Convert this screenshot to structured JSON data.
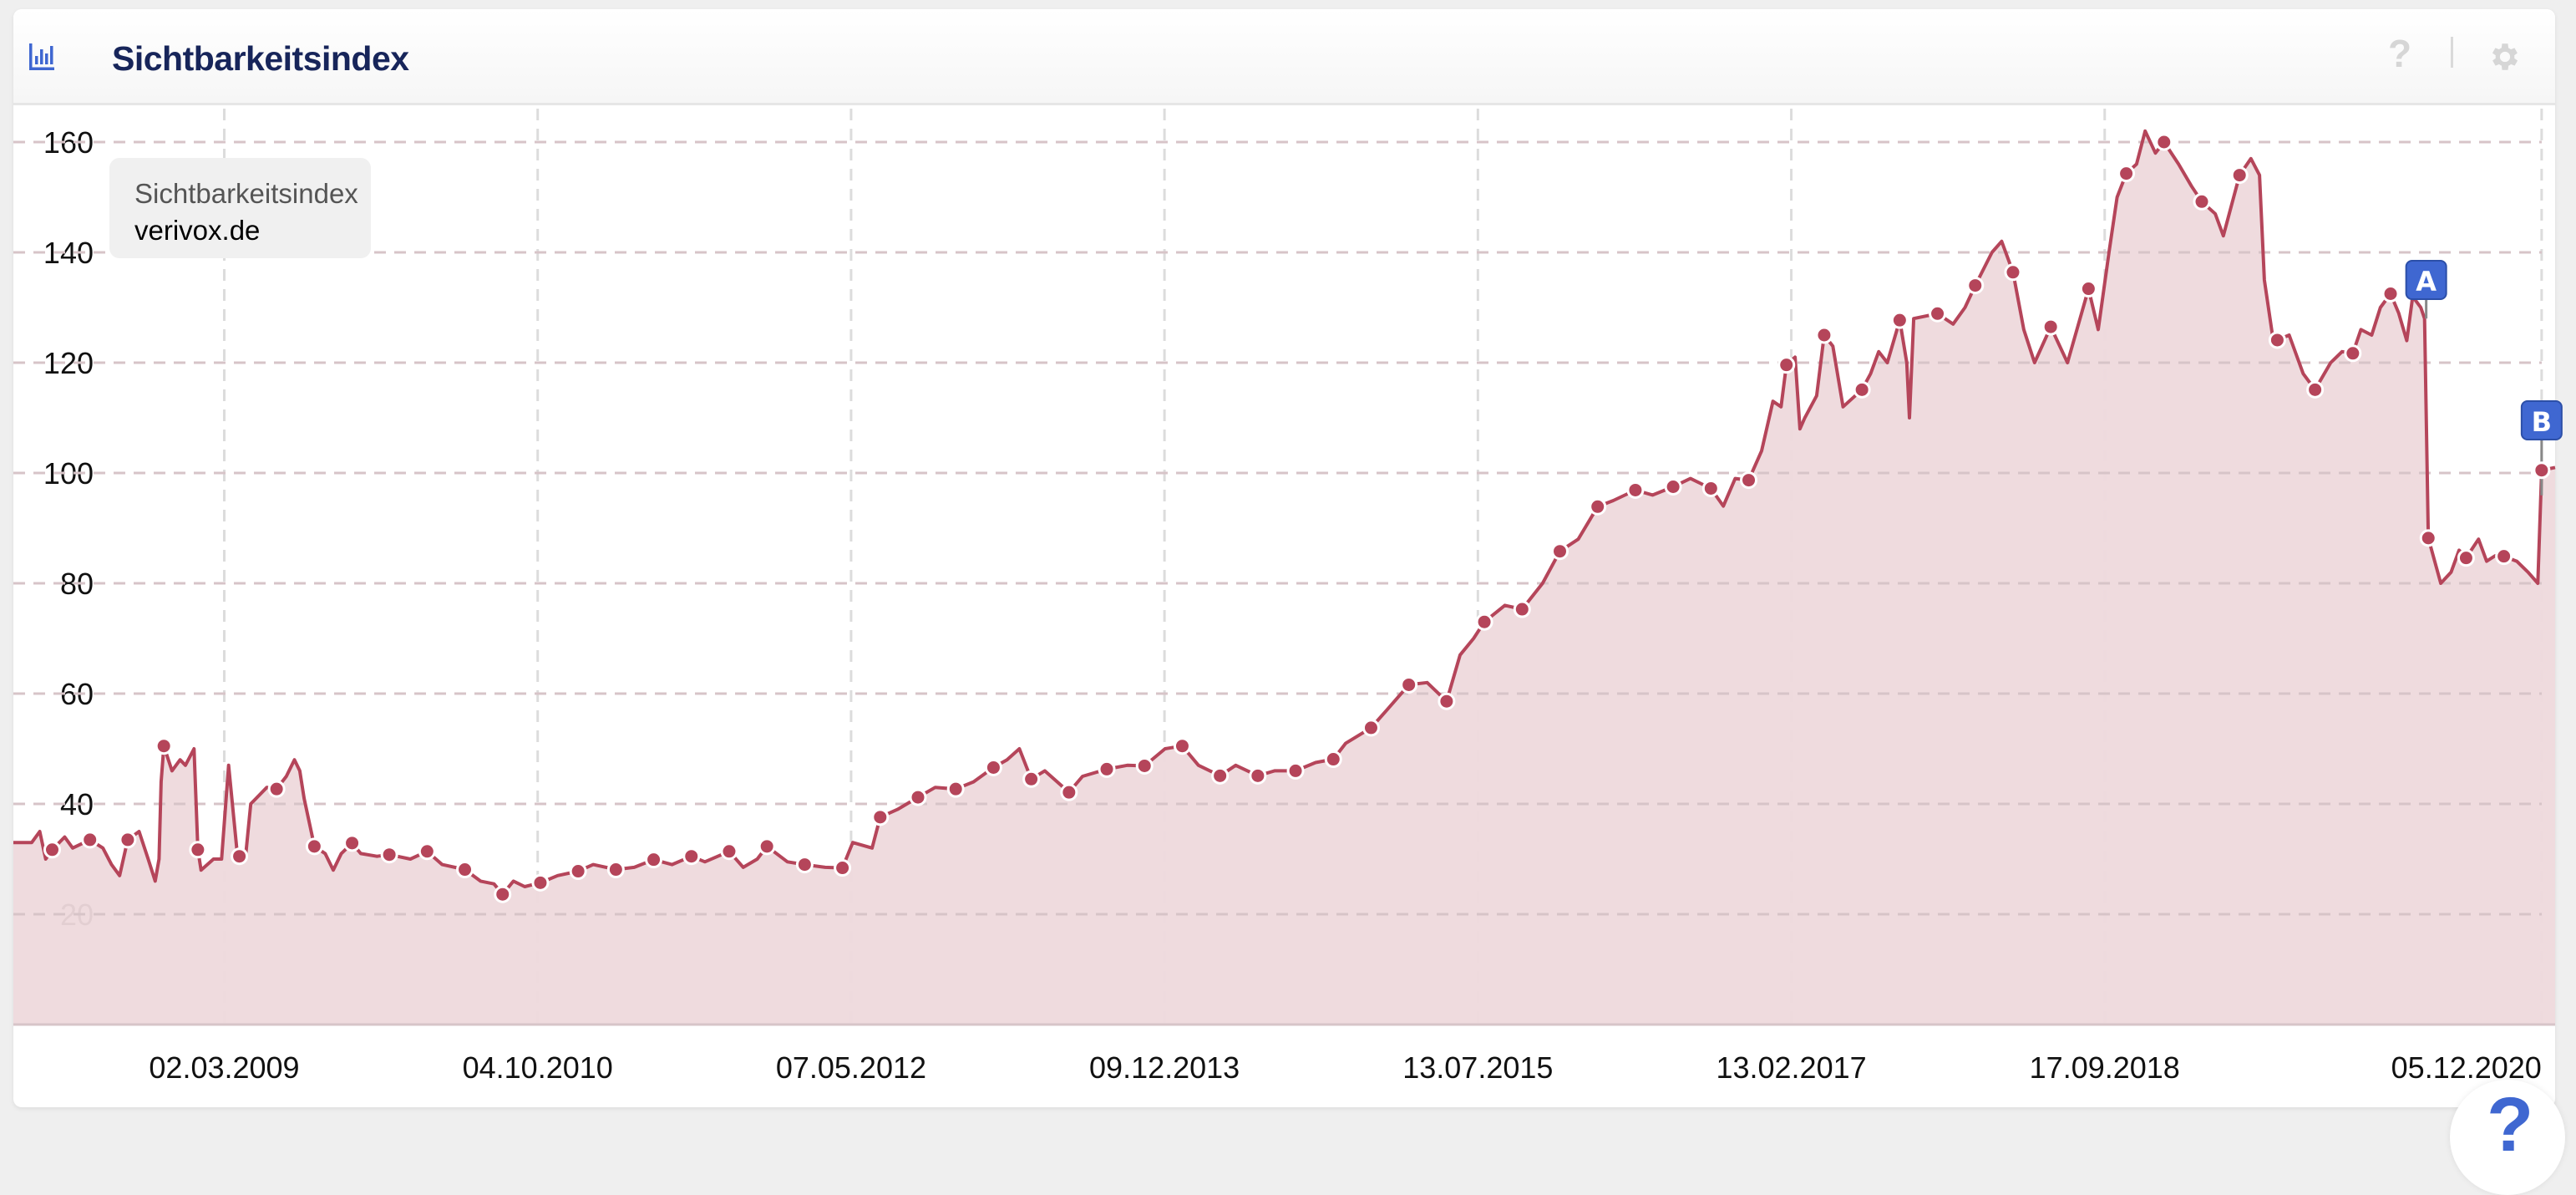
{
  "header": {
    "title": "Sichtbarkeitsindex",
    "icon": "bar-chart-icon",
    "help_icon": "?",
    "settings_icon": "gear-icon"
  },
  "legend": {
    "title": "Sichtbarkeitsindex",
    "domain": "verivox.de"
  },
  "help_button": "?",
  "colors": {
    "line": "#b5455a",
    "fill": "#eed9dc",
    "flag": "#3f67d1",
    "accent": "#17255a"
  },
  "chart_data": {
    "type": "area",
    "title": "",
    "xlabel": "",
    "ylabel": "",
    "x_range": [
      "2008-02-05",
      "2020-12-30"
    ],
    "ylim": [
      0,
      165
    ],
    "y_ticks": [
      20,
      40,
      60,
      80,
      100,
      120,
      140,
      160
    ],
    "x_ticks": [
      "02.03.2009",
      "04.10.2010",
      "07.05.2012",
      "09.12.2013",
      "13.07.2015",
      "13.02.2017",
      "17.09.2018",
      "05.12.2020"
    ],
    "grid": true,
    "legend_position": "top-left",
    "series": [
      {
        "name": "verivox.de",
        "points": [
          [
            "2008-02-05",
            33
          ],
          [
            "2008-03-10",
            33
          ],
          [
            "2008-03-25",
            35
          ],
          [
            "2008-04-05",
            30
          ],
          [
            "2008-04-17",
            31.7
          ],
          [
            "2008-05-10",
            34
          ],
          [
            "2008-05-25",
            32
          ],
          [
            "2008-06-26",
            33.5
          ],
          [
            "2008-07-20",
            32
          ],
          [
            "2008-08-05",
            29
          ],
          [
            "2008-08-20",
            27
          ],
          [
            "2008-09-04",
            33.5
          ],
          [
            "2008-09-25",
            35
          ],
          [
            "2008-10-12",
            30
          ],
          [
            "2008-10-25",
            26
          ],
          [
            "2008-11-01",
            30
          ],
          [
            "2008-11-05",
            44
          ],
          [
            "2008-11-10",
            50.5
          ],
          [
            "2008-11-25",
            46
          ],
          [
            "2008-12-10",
            48
          ],
          [
            "2008-12-20",
            47
          ],
          [
            "2009-01-05",
            50
          ],
          [
            "2009-01-12",
            31.7
          ],
          [
            "2009-01-18",
            28
          ],
          [
            "2009-02-10",
            30
          ],
          [
            "2009-02-25",
            30
          ],
          [
            "2009-03-10",
            47
          ],
          [
            "2009-03-25",
            32
          ],
          [
            "2009-03-30",
            30.5
          ],
          [
            "2009-04-10",
            30
          ],
          [
            "2009-04-20",
            40
          ],
          [
            "2009-05-20",
            43
          ],
          [
            "2009-06-07",
            42.7
          ],
          [
            "2009-06-25",
            45
          ],
          [
            "2009-07-10",
            48
          ],
          [
            "2009-07-20",
            46
          ],
          [
            "2009-07-28",
            41
          ],
          [
            "2009-08-16",
            32.3
          ],
          [
            "2009-09-05",
            31
          ],
          [
            "2009-09-20",
            28
          ],
          [
            "2009-10-05",
            31
          ],
          [
            "2009-10-25",
            32.9
          ],
          [
            "2009-11-10",
            31
          ],
          [
            "2009-12-10",
            30.5
          ],
          [
            "2010-01-02",
            30.8
          ],
          [
            "2010-02-10",
            30
          ],
          [
            "2010-03-13",
            31.4
          ],
          [
            "2010-04-10",
            29
          ],
          [
            "2010-05-22",
            28.1
          ],
          [
            "2010-06-20",
            26
          ],
          [
            "2010-07-15",
            25.5
          ],
          [
            "2010-07-31",
            23.6
          ],
          [
            "2010-08-20",
            26
          ],
          [
            "2010-09-10",
            25
          ],
          [
            "2010-10-09",
            25.7
          ],
          [
            "2010-11-10",
            27
          ],
          [
            "2010-12-18",
            27.8
          ],
          [
            "2011-01-15",
            29
          ],
          [
            "2011-02-26",
            28.1
          ],
          [
            "2011-04-01",
            28.5
          ],
          [
            "2011-05-07",
            29.9
          ],
          [
            "2011-06-10",
            29
          ],
          [
            "2011-07-16",
            30.5
          ],
          [
            "2011-08-10",
            29.5
          ],
          [
            "2011-09-24",
            31.4
          ],
          [
            "2011-10-20",
            28.5
          ],
          [
            "2011-11-15",
            30
          ],
          [
            "2011-12-03",
            32.3
          ],
          [
            "2012-01-10",
            29.5
          ],
          [
            "2012-02-11",
            29.0
          ],
          [
            "2012-03-20",
            28.5
          ],
          [
            "2012-04-21",
            28.4
          ],
          [
            "2012-05-10",
            33
          ],
          [
            "2012-06-15",
            32
          ],
          [
            "2012-06-30",
            37.6
          ],
          [
            "2012-08-01",
            39
          ],
          [
            "2012-09-08",
            41.2
          ],
          [
            "2012-10-10",
            43
          ],
          [
            "2012-11-17",
            42.7
          ],
          [
            "2012-12-20",
            44
          ],
          [
            "2013-01-26",
            46.6
          ],
          [
            "2013-02-20",
            48
          ],
          [
            "2013-03-15",
            50
          ],
          [
            "2013-04-06",
            44.5
          ],
          [
            "2013-05-01",
            46
          ],
          [
            "2013-06-15",
            42.1
          ],
          [
            "2013-07-10",
            45
          ],
          [
            "2013-08-24",
            46.3
          ],
          [
            "2013-10-01",
            47
          ],
          [
            "2013-11-02",
            46.9
          ],
          [
            "2013-12-10",
            50
          ],
          [
            "2014-01-11",
            50.5
          ],
          [
            "2014-02-10",
            47
          ],
          [
            "2014-03-22",
            45.1
          ],
          [
            "2014-04-20",
            47
          ],
          [
            "2014-05-31",
            45.1
          ],
          [
            "2014-07-01",
            46
          ],
          [
            "2014-08-09",
            46.0
          ],
          [
            "2014-09-15",
            47.5
          ],
          [
            "2014-10-18",
            48.1
          ],
          [
            "2014-11-10",
            51
          ],
          [
            "2014-12-27",
            53.8
          ],
          [
            "2015-01-25",
            57
          ],
          [
            "2015-03-07",
            61.6
          ],
          [
            "2015-04-10",
            62
          ],
          [
            "2015-05-16",
            58.6
          ],
          [
            "2015-06-10",
            67
          ],
          [
            "2015-07-05",
            70
          ],
          [
            "2015-07-25",
            73.0
          ],
          [
            "2015-09-01",
            76
          ],
          [
            "2015-10-03",
            75.3
          ],
          [
            "2015-11-10",
            80
          ],
          [
            "2015-12-12",
            85.8
          ],
          [
            "2016-01-15",
            88
          ],
          [
            "2016-02-20",
            93.9
          ],
          [
            "2016-03-20",
            95
          ],
          [
            "2016-04-30",
            96.9
          ],
          [
            "2016-06-01",
            96
          ],
          [
            "2016-07-09",
            97.5
          ],
          [
            "2016-08-10",
            99
          ],
          [
            "2016-09-17",
            97.2
          ],
          [
            "2016-10-10",
            94
          ],
          [
            "2016-11-01",
            99
          ],
          [
            "2016-11-26",
            98.7
          ],
          [
            "2016-12-20",
            104
          ],
          [
            "2017-01-10",
            113
          ],
          [
            "2017-01-25",
            112
          ],
          [
            "2017-02-04",
            119.6
          ],
          [
            "2017-02-20",
            121
          ],
          [
            "2017-03-01",
            108
          ],
          [
            "2017-03-10",
            110
          ],
          [
            "2017-04-01",
            114
          ],
          [
            "2017-04-15",
            125.0
          ],
          [
            "2017-05-01",
            123
          ],
          [
            "2017-05-20",
            112
          ],
          [
            "2017-06-24",
            115.1
          ],
          [
            "2017-07-10",
            118
          ],
          [
            "2017-07-25",
            122
          ],
          [
            "2017-08-10",
            120
          ],
          [
            "2017-09-02",
            127.7
          ],
          [
            "2017-09-15",
            120
          ],
          [
            "2017-09-20",
            110
          ],
          [
            "2017-09-28",
            128
          ],
          [
            "2017-11-11",
            128.9
          ],
          [
            "2017-12-10",
            127
          ],
          [
            "2018-01-01",
            130
          ],
          [
            "2018-01-20",
            134.0
          ],
          [
            "2018-02-20",
            140
          ],
          [
            "2018-03-10",
            142
          ],
          [
            "2018-03-31",
            136.4
          ],
          [
            "2018-04-20",
            126
          ],
          [
            "2018-05-10",
            120
          ],
          [
            "2018-06-09",
            126.5
          ],
          [
            "2018-07-10",
            120
          ],
          [
            "2018-08-18",
            133.4
          ],
          [
            "2018-09-05",
            126
          ],
          [
            "2018-09-25",
            140
          ],
          [
            "2018-10-10",
            150
          ],
          [
            "2018-10-27",
            154.3
          ],
          [
            "2018-11-15",
            156
          ],
          [
            "2018-12-01",
            162
          ],
          [
            "2018-12-20",
            158
          ],
          [
            "2019-01-05",
            160.0
          ],
          [
            "2019-02-01",
            156
          ],
          [
            "2019-02-25",
            152
          ],
          [
            "2019-03-16",
            149.2
          ],
          [
            "2019-04-10",
            147
          ],
          [
            "2019-04-25",
            143
          ],
          [
            "2019-05-25",
            154.0
          ],
          [
            "2019-06-15",
            157
          ],
          [
            "2019-07-01",
            154
          ],
          [
            "2019-07-10",
            135
          ],
          [
            "2019-07-25",
            125
          ],
          [
            "2019-08-03",
            124.1
          ],
          [
            "2019-08-25",
            125
          ],
          [
            "2019-09-20",
            118
          ],
          [
            "2019-10-12",
            115.1
          ],
          [
            "2019-11-10",
            120
          ],
          [
            "2019-12-01",
            122
          ],
          [
            "2019-12-21",
            121.7
          ],
          [
            "2020-01-05",
            126
          ],
          [
            "2020-01-25",
            125
          ],
          [
            "2020-02-10",
            130
          ],
          [
            "2020-02-29",
            132.5
          ],
          [
            "2020-03-15",
            129
          ],
          [
            "2020-03-30",
            124
          ],
          [
            "2020-04-10",
            132
          ],
          [
            "2020-04-25",
            130
          ],
          [
            "2020-05-02",
            128
          ],
          [
            "2020-05-09",
            88.2
          ],
          [
            "2020-06-01",
            80
          ],
          [
            "2020-06-20",
            82
          ],
          [
            "2020-07-05",
            86
          ],
          [
            "2020-07-18",
            84.6
          ],
          [
            "2020-08-10",
            88
          ],
          [
            "2020-08-25",
            84
          ],
          [
            "2020-09-10",
            85
          ],
          [
            "2020-09-26",
            84.9
          ],
          [
            "2020-10-20",
            84
          ],
          [
            "2020-11-10",
            82
          ],
          [
            "2020-11-28",
            80
          ],
          [
            "2020-12-05",
            100.5
          ],
          [
            "2020-12-30",
            101
          ]
        ],
        "markers": [
          [
            "2008-04-17",
            31.7
          ],
          [
            "2008-06-26",
            33.5
          ],
          [
            "2008-09-04",
            33.5
          ],
          [
            "2008-11-10",
            50.5
          ],
          [
            "2009-01-12",
            31.7
          ],
          [
            "2009-03-30",
            30.5
          ],
          [
            "2009-06-07",
            42.7
          ],
          [
            "2009-08-16",
            32.3
          ],
          [
            "2009-10-25",
            32.9
          ],
          [
            "2010-01-02",
            30.8
          ],
          [
            "2010-03-13",
            31.4
          ],
          [
            "2010-05-22",
            28.1
          ],
          [
            "2010-07-31",
            23.6
          ],
          [
            "2010-10-09",
            25.7
          ],
          [
            "2010-12-18",
            27.8
          ],
          [
            "2011-02-26",
            28.1
          ],
          [
            "2011-05-07",
            29.9
          ],
          [
            "2011-07-16",
            30.5
          ],
          [
            "2011-09-24",
            31.4
          ],
          [
            "2011-12-03",
            32.3
          ],
          [
            "2012-02-11",
            29.0
          ],
          [
            "2012-04-21",
            28.4
          ],
          [
            "2012-06-30",
            37.6
          ],
          [
            "2012-09-08",
            41.2
          ],
          [
            "2012-11-17",
            42.7
          ],
          [
            "2013-01-26",
            46.6
          ],
          [
            "2013-04-06",
            44.5
          ],
          [
            "2013-06-15",
            42.1
          ],
          [
            "2013-08-24",
            46.3
          ],
          [
            "2013-11-02",
            46.9
          ],
          [
            "2014-01-11",
            50.5
          ],
          [
            "2014-03-22",
            45.1
          ],
          [
            "2014-05-31",
            45.1
          ],
          [
            "2014-08-09",
            46.0
          ],
          [
            "2014-10-18",
            48.1
          ],
          [
            "2014-12-27",
            53.8
          ],
          [
            "2015-03-07",
            61.6
          ],
          [
            "2015-05-16",
            58.6
          ],
          [
            "2015-07-25",
            73.0
          ],
          [
            "2015-10-03",
            75.3
          ],
          [
            "2015-12-12",
            85.8
          ],
          [
            "2016-02-20",
            93.9
          ],
          [
            "2016-04-30",
            96.9
          ],
          [
            "2016-07-09",
            97.5
          ],
          [
            "2016-09-17",
            97.2
          ],
          [
            "2016-11-26",
            98.7
          ],
          [
            "2017-02-04",
            119.6
          ],
          [
            "2017-04-15",
            125.0
          ],
          [
            "2017-06-24",
            115.1
          ],
          [
            "2017-09-02",
            127.7
          ],
          [
            "2017-11-11",
            128.9
          ],
          [
            "2018-01-20",
            134.0
          ],
          [
            "2018-03-31",
            136.4
          ],
          [
            "2018-06-09",
            126.5
          ],
          [
            "2018-08-18",
            133.4
          ],
          [
            "2018-10-27",
            154.3
          ],
          [
            "2019-01-05",
            160.0
          ],
          [
            "2019-03-16",
            149.2
          ],
          [
            "2019-05-25",
            154.0
          ],
          [
            "2019-08-03",
            124.1
          ],
          [
            "2019-10-12",
            115.1
          ],
          [
            "2019-12-21",
            121.7
          ],
          [
            "2020-02-29",
            132.5
          ],
          [
            "2020-05-09",
            88.2
          ],
          [
            "2020-07-18",
            84.6
          ],
          [
            "2020-09-26",
            84.9
          ],
          [
            "2020-12-05",
            100.5
          ]
        ]
      }
    ],
    "flags": [
      {
        "label": "A",
        "date": "2020-05-05",
        "value": 128
      },
      {
        "label": "B",
        "date": "2020-12-05",
        "value": 100.5
      }
    ]
  }
}
